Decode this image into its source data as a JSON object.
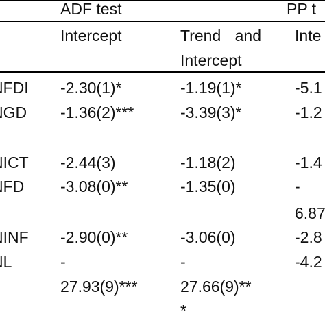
{
  "header": {
    "group_adf": "ADF test",
    "group_pp": "PP t",
    "adf_intercept": "Intercept",
    "adf_trend_line1": "Trend and",
    "adf_trend_line2": "Intercept",
    "pp_intercept": "Inte"
  },
  "rows": [
    {
      "var": "NFDI",
      "adf_i": "-2.30(1)*",
      "adf_t": "-1.19(1)*",
      "pp_i": "-5.1"
    },
    {
      "var": "NGD",
      "adf_i": "-1.36(2)***",
      "adf_t": "-3.39(3)*",
      "pp_i": "-1.2"
    },
    {
      "var": "NICT",
      "adf_i": "-2.44(3)",
      "adf_t": "-1.18(2)",
      "pp_i": "-1.4"
    },
    {
      "var": "NFD",
      "adf_i": "-3.08(0)**",
      "adf_t": "-1.35(0)",
      "pp_i": "-",
      "pp_i_cont": "6.87"
    },
    {
      "var": "NINF",
      "adf_i": "-2.90(0)**",
      "adf_t": "-3.06(0)",
      "pp_i": "-2.8"
    },
    {
      "var": "NL",
      "adf_i": "-",
      "adf_i_cont": "27.93(9)***",
      "adf_t": "-",
      "adf_t_cont": "27.66(9)**",
      "adf_t_cont2": "*",
      "pp_i": "-4.2"
    }
  ]
}
